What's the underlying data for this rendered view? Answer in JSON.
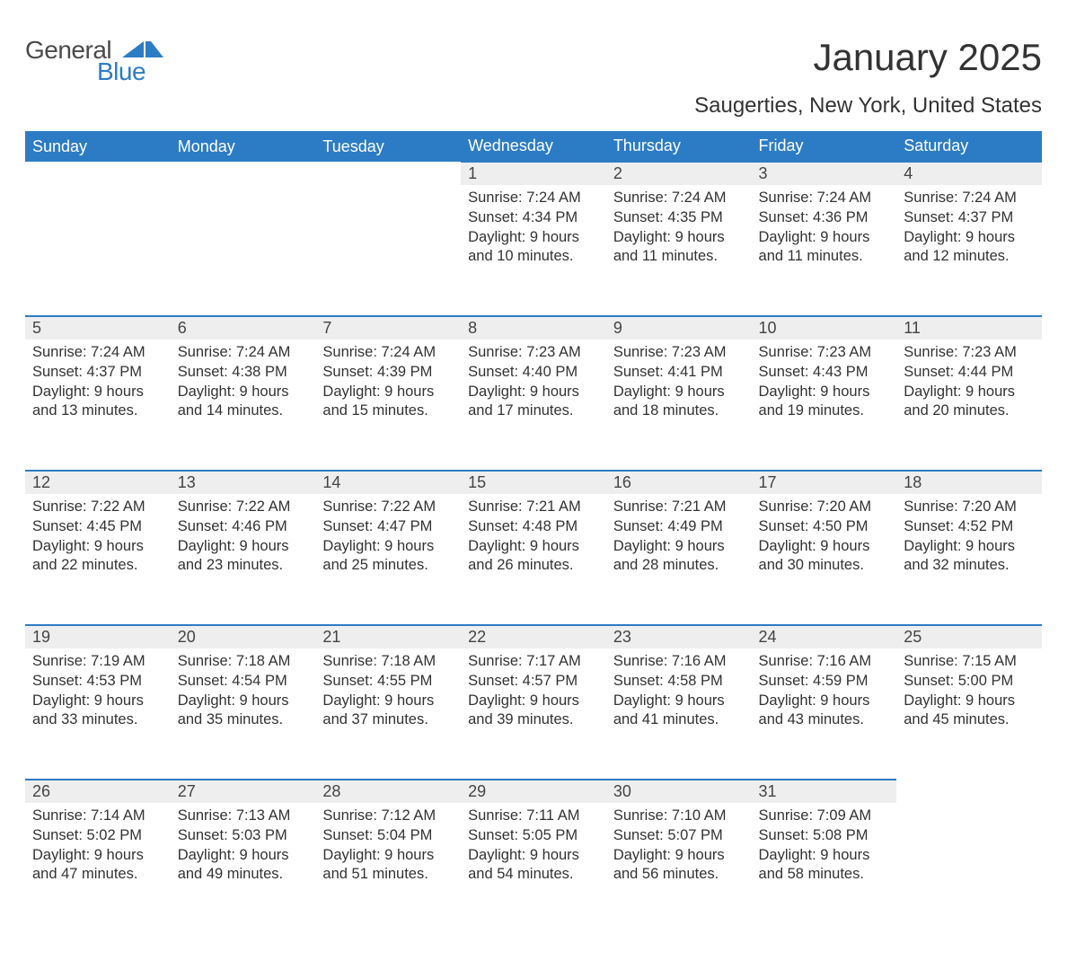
{
  "brand": {
    "line1": "General",
    "line2": "Blue",
    "text_color": "#4a4a4a",
    "accent_color": "#2c7cc5"
  },
  "title": "January 2025",
  "subtitle": "Saugerties, New York, United States",
  "colors": {
    "header_bg": "#2c7cc5",
    "header_text": "#ffffff",
    "daynum_bg": "#eeeeee",
    "border_top": "#2c7cc5",
    "body_text": "#333333",
    "page_bg": "#ffffff"
  },
  "fonts": {
    "title_pt": 42,
    "subtitle_pt": 24,
    "header_pt": 18,
    "daynum_pt": 18,
    "detail_pt": 16.5
  },
  "weekdays": [
    "Sunday",
    "Monday",
    "Tuesday",
    "Wednesday",
    "Thursday",
    "Friday",
    "Saturday"
  ],
  "weeks": [
    {
      "days": [
        null,
        null,
        null,
        {
          "n": "1",
          "sunrise": "7:24 AM",
          "sunset": "4:34 PM",
          "daylight": "9 hours and 10 minutes."
        },
        {
          "n": "2",
          "sunrise": "7:24 AM",
          "sunset": "4:35 PM",
          "daylight": "9 hours and 11 minutes."
        },
        {
          "n": "3",
          "sunrise": "7:24 AM",
          "sunset": "4:36 PM",
          "daylight": "9 hours and 11 minutes."
        },
        {
          "n": "4",
          "sunrise": "7:24 AM",
          "sunset": "4:37 PM",
          "daylight": "9 hours and 12 minutes."
        }
      ]
    },
    {
      "days": [
        {
          "n": "5",
          "sunrise": "7:24 AM",
          "sunset": "4:37 PM",
          "daylight": "9 hours and 13 minutes."
        },
        {
          "n": "6",
          "sunrise": "7:24 AM",
          "sunset": "4:38 PM",
          "daylight": "9 hours and 14 minutes."
        },
        {
          "n": "7",
          "sunrise": "7:24 AM",
          "sunset": "4:39 PM",
          "daylight": "9 hours and 15 minutes."
        },
        {
          "n": "8",
          "sunrise": "7:23 AM",
          "sunset": "4:40 PM",
          "daylight": "9 hours and 17 minutes."
        },
        {
          "n": "9",
          "sunrise": "7:23 AM",
          "sunset": "4:41 PM",
          "daylight": "9 hours and 18 minutes."
        },
        {
          "n": "10",
          "sunrise": "7:23 AM",
          "sunset": "4:43 PM",
          "daylight": "9 hours and 19 minutes."
        },
        {
          "n": "11",
          "sunrise": "7:23 AM",
          "sunset": "4:44 PM",
          "daylight": "9 hours and 20 minutes."
        }
      ]
    },
    {
      "days": [
        {
          "n": "12",
          "sunrise": "7:22 AM",
          "sunset": "4:45 PM",
          "daylight": "9 hours and 22 minutes."
        },
        {
          "n": "13",
          "sunrise": "7:22 AM",
          "sunset": "4:46 PM",
          "daylight": "9 hours and 23 minutes."
        },
        {
          "n": "14",
          "sunrise": "7:22 AM",
          "sunset": "4:47 PM",
          "daylight": "9 hours and 25 minutes."
        },
        {
          "n": "15",
          "sunrise": "7:21 AM",
          "sunset": "4:48 PM",
          "daylight": "9 hours and 26 minutes."
        },
        {
          "n": "16",
          "sunrise": "7:21 AM",
          "sunset": "4:49 PM",
          "daylight": "9 hours and 28 minutes."
        },
        {
          "n": "17",
          "sunrise": "7:20 AM",
          "sunset": "4:50 PM",
          "daylight": "9 hours and 30 minutes."
        },
        {
          "n": "18",
          "sunrise": "7:20 AM",
          "sunset": "4:52 PM",
          "daylight": "9 hours and 32 minutes."
        }
      ]
    },
    {
      "days": [
        {
          "n": "19",
          "sunrise": "7:19 AM",
          "sunset": "4:53 PM",
          "daylight": "9 hours and 33 minutes."
        },
        {
          "n": "20",
          "sunrise": "7:18 AM",
          "sunset": "4:54 PM",
          "daylight": "9 hours and 35 minutes."
        },
        {
          "n": "21",
          "sunrise": "7:18 AM",
          "sunset": "4:55 PM",
          "daylight": "9 hours and 37 minutes."
        },
        {
          "n": "22",
          "sunrise": "7:17 AM",
          "sunset": "4:57 PM",
          "daylight": "9 hours and 39 minutes."
        },
        {
          "n": "23",
          "sunrise": "7:16 AM",
          "sunset": "4:58 PM",
          "daylight": "9 hours and 41 minutes."
        },
        {
          "n": "24",
          "sunrise": "7:16 AM",
          "sunset": "4:59 PM",
          "daylight": "9 hours and 43 minutes."
        },
        {
          "n": "25",
          "sunrise": "7:15 AM",
          "sunset": "5:00 PM",
          "daylight": "9 hours and 45 minutes."
        }
      ]
    },
    {
      "days": [
        {
          "n": "26",
          "sunrise": "7:14 AM",
          "sunset": "5:02 PM",
          "daylight": "9 hours and 47 minutes."
        },
        {
          "n": "27",
          "sunrise": "7:13 AM",
          "sunset": "5:03 PM",
          "daylight": "9 hours and 49 minutes."
        },
        {
          "n": "28",
          "sunrise": "7:12 AM",
          "sunset": "5:04 PM",
          "daylight": "9 hours and 51 minutes."
        },
        {
          "n": "29",
          "sunrise": "7:11 AM",
          "sunset": "5:05 PM",
          "daylight": "9 hours and 54 minutes."
        },
        {
          "n": "30",
          "sunrise": "7:10 AM",
          "sunset": "5:07 PM",
          "daylight": "9 hours and 56 minutes."
        },
        {
          "n": "31",
          "sunrise": "7:09 AM",
          "sunset": "5:08 PM",
          "daylight": "9 hours and 58 minutes."
        },
        null
      ]
    }
  ],
  "labels": {
    "sunrise": "Sunrise: ",
    "sunset": "Sunset: ",
    "daylight": "Daylight: "
  }
}
